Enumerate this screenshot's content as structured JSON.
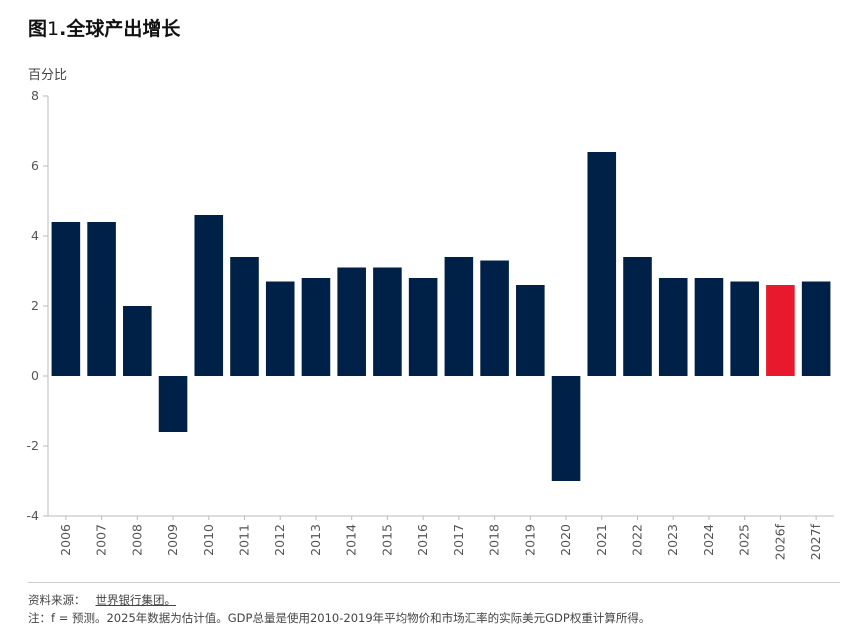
{
  "header": {
    "title_prefix": "图",
    "title_number": "1",
    "title_text": ".全球产出增长"
  },
  "footer": {
    "source_label": "资料来源：",
    "source_link": "世界银行集团。",
    "note": "注：f = 预测。2025年数据为估计值。GDP总量是使用2010-2019年平均物价和市场汇率的实际美元GDP权重计算所得。"
  },
  "chart_data": {
    "type": "bar",
    "title": "图1.全球产出增长",
    "ylabel": "百分比",
    "xlabel": "",
    "ylim": [
      -4,
      8
    ],
    "yticks": [
      "8",
      "6",
      "4",
      "2",
      "0",
      "-2",
      "-4"
    ],
    "categories": [
      "2006",
      "2007",
      "2008",
      "2009",
      "2010",
      "2011",
      "2012",
      "2013",
      "2014",
      "2015",
      "2016",
      "2017",
      "2018",
      "2019",
      "2020",
      "2021",
      "2022",
      "2023",
      "2024",
      "2025",
      "2026f",
      "2027f"
    ],
    "values": [
      4.4,
      4.4,
      2.0,
      -1.6,
      4.6,
      3.4,
      2.7,
      2.8,
      3.1,
      3.1,
      2.8,
      3.4,
      3.3,
      2.6,
      -3.0,
      6.4,
      3.4,
      2.8,
      2.8,
      2.7,
      2.6,
      2.7
    ],
    "highlight_index": 20,
    "colors": {
      "bar": "#002147",
      "highlight": "#e8192c",
      "axis": "#bbbbbb"
    }
  }
}
